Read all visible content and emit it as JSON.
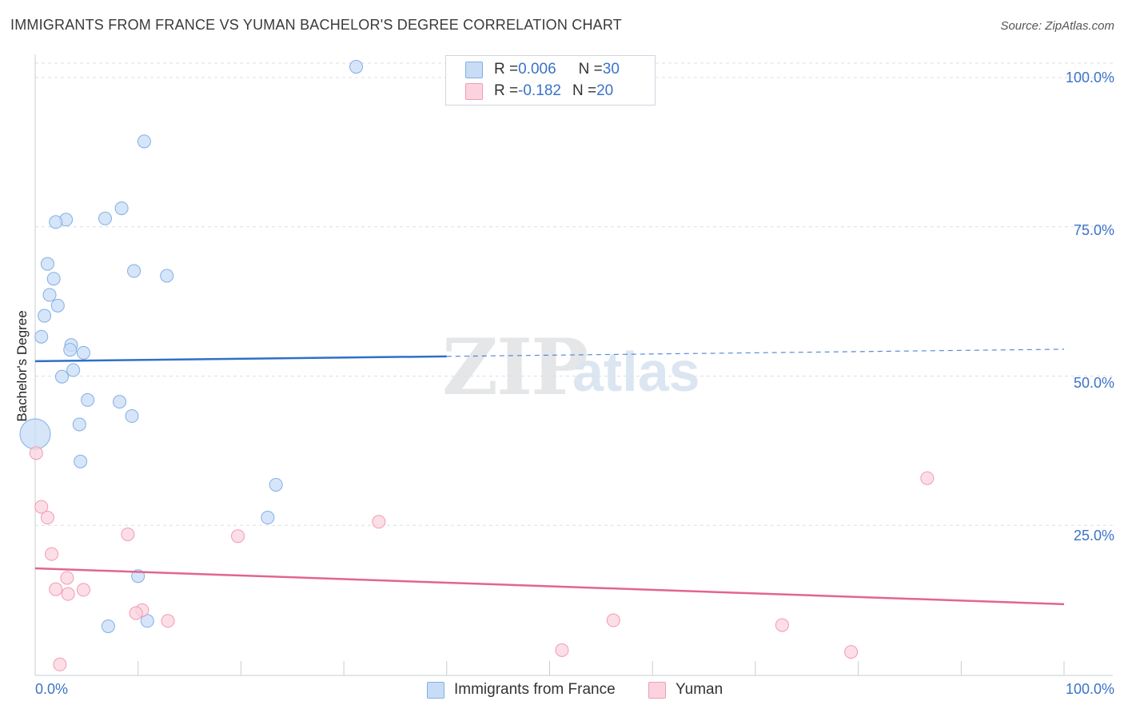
{
  "header": {
    "title": "IMMIGRANTS FROM FRANCE VS YUMAN BACHELOR'S DEGREE CORRELATION CHART",
    "source": "Source: ZipAtlas.com"
  },
  "watermark": {
    "part1": "ZIP",
    "part2": "atlas"
  },
  "legend": {
    "rows": [
      {
        "r_label": "R = ",
        "r_value": "0.006",
        "n_label": "N = ",
        "n_value": "30",
        "color": "#aecbf2"
      },
      {
        "r_label": "R = ",
        "r_value": "-0.182",
        "n_label": "N = ",
        "n_value": "20",
        "color": "#f8c5d3"
      }
    ]
  },
  "chart_data": {
    "type": "scatter",
    "title": "IMMIGRANTS FROM FRANCE VS YUMAN BACHELOR'S DEGREE CORRELATION CHART",
    "xlabel": "",
    "ylabel": "Bachelor's Degree",
    "xlim": [
      0,
      100
    ],
    "ylim": [
      0,
      100
    ],
    "x_tick_labels": {
      "left": "0.0%",
      "right": "100.0%"
    },
    "y_tick_labels": [
      "100.0%",
      "75.0%",
      "50.0%",
      "25.0%"
    ],
    "y_tick_values": [
      100,
      75,
      50,
      25
    ],
    "grid": true,
    "legend_position": "top-center",
    "series": [
      {
        "name": "Immigrants from France",
        "color": "#7fb0e8",
        "fill": "#c9dcf5",
        "line_color": "#2f6fc9",
        "trend": {
          "start": [
            0,
            52.5
          ],
          "end": [
            100,
            54.5
          ],
          "solid_until": 40
        },
        "points": [
          {
            "x": 31.2,
            "y": 101.8,
            "s": 8
          },
          {
            "x": 10.6,
            "y": 89.3,
            "s": 8
          },
          {
            "x": 8.4,
            "y": 78.1,
            "s": 8
          },
          {
            "x": 6.8,
            "y": 76.4,
            "s": 8
          },
          {
            "x": 3.0,
            "y": 76.2,
            "s": 8
          },
          {
            "x": 2.0,
            "y": 75.8,
            "s": 8
          },
          {
            "x": 1.2,
            "y": 68.8,
            "s": 8
          },
          {
            "x": 9.6,
            "y": 67.6,
            "s": 8
          },
          {
            "x": 12.8,
            "y": 66.8,
            "s": 8
          },
          {
            "x": 1.8,
            "y": 66.3,
            "s": 8
          },
          {
            "x": 1.4,
            "y": 63.6,
            "s": 8
          },
          {
            "x": 2.2,
            "y": 61.8,
            "s": 8
          },
          {
            "x": 0.9,
            "y": 60.1,
            "s": 8
          },
          {
            "x": 0.6,
            "y": 56.6,
            "s": 8
          },
          {
            "x": 3.5,
            "y": 55.2,
            "s": 8
          },
          {
            "x": 3.4,
            "y": 54.4,
            "s": 8
          },
          {
            "x": 4.7,
            "y": 53.9,
            "s": 8
          },
          {
            "x": 3.7,
            "y": 51.0,
            "s": 8
          },
          {
            "x": 2.6,
            "y": 49.9,
            "s": 8
          },
          {
            "x": 5.1,
            "y": 46.0,
            "s": 8
          },
          {
            "x": 8.2,
            "y": 45.7,
            "s": 8
          },
          {
            "x": 9.4,
            "y": 43.3,
            "s": 8
          },
          {
            "x": 4.3,
            "y": 41.9,
            "s": 8
          },
          {
            "x": 0.0,
            "y": 40.3,
            "s": 19
          },
          {
            "x": 4.4,
            "y": 35.7,
            "s": 8
          },
          {
            "x": 23.4,
            "y": 31.8,
            "s": 8
          },
          {
            "x": 22.6,
            "y": 26.3,
            "s": 8
          },
          {
            "x": 10.0,
            "y": 16.5,
            "s": 8
          },
          {
            "x": 10.9,
            "y": 9.0,
            "s": 8
          },
          {
            "x": 7.1,
            "y": 8.1,
            "s": 8
          }
        ]
      },
      {
        "name": "Yuman",
        "color": "#f29ab4",
        "fill": "#fbd3df",
        "line_color": "#e2658e",
        "trend": {
          "start": [
            0,
            17.8
          ],
          "end": [
            100,
            11.8
          ],
          "solid_until": 100
        },
        "points": [
          {
            "x": 0.1,
            "y": 37.1,
            "s": 8
          },
          {
            "x": 0.6,
            "y": 28.1,
            "s": 8
          },
          {
            "x": 1.2,
            "y": 26.3,
            "s": 8
          },
          {
            "x": 1.6,
            "y": 20.2,
            "s": 8
          },
          {
            "x": 9.0,
            "y": 23.5,
            "s": 8
          },
          {
            "x": 19.7,
            "y": 23.2,
            "s": 8
          },
          {
            "x": 33.4,
            "y": 25.6,
            "s": 8
          },
          {
            "x": 86.7,
            "y": 32.9,
            "s": 8
          },
          {
            "x": 3.1,
            "y": 16.2,
            "s": 8
          },
          {
            "x": 2.0,
            "y": 14.3,
            "s": 8
          },
          {
            "x": 4.7,
            "y": 14.2,
            "s": 8
          },
          {
            "x": 3.2,
            "y": 13.5,
            "s": 8
          },
          {
            "x": 10.4,
            "y": 10.8,
            "s": 8
          },
          {
            "x": 9.8,
            "y": 10.3,
            "s": 8
          },
          {
            "x": 12.9,
            "y": 9.0,
            "s": 8
          },
          {
            "x": 56.2,
            "y": 9.1,
            "s": 8
          },
          {
            "x": 72.6,
            "y": 8.3,
            "s": 8
          },
          {
            "x": 51.2,
            "y": 4.1,
            "s": 8
          },
          {
            "x": 79.3,
            "y": 3.8,
            "s": 8
          },
          {
            "x": 2.4,
            "y": 1.7,
            "s": 8
          }
        ]
      }
    ]
  }
}
